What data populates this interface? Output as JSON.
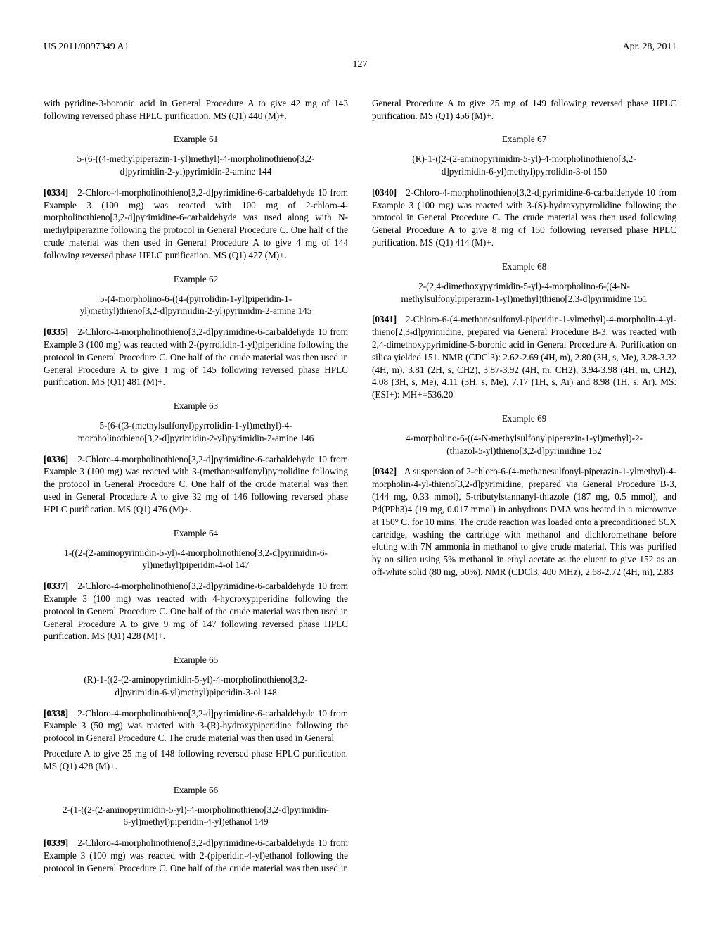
{
  "header": {
    "pub_number": "US 2011/0097349 A1",
    "pub_date": "Apr. 28, 2011"
  },
  "page_number": "127",
  "lead_in": "with pyridine-3-boronic acid in General Procedure A to give 42 mg of 143 following reversed phase HPLC purification. MS (Q1) 440 (M)+.",
  "examples": [
    {
      "label": "Example 61",
      "title": "5-(6-((4-methylpiperazin-1-yl)methyl)-4-morpholinothieno[3,2-d]pyrimidin-2-yl)pyrimidin-2-amine 144",
      "pnum": "[0334]",
      "body": "2-Chloro-4-morpholinothieno[3,2-d]pyrimidine-6-carbaldehyde 10 from Example 3 (100 mg) was reacted with 100 mg of 2-chloro-4-morpholinothieno[3,2-d]pyrimidine-6-carbaldehyde was used along with N-methylpiperazine following the protocol in General Procedure C. One half of the crude material was then used in General Procedure A to give 4 mg of 144 following reversed phase HPLC purification. MS (Q1) 427 (M)+."
    },
    {
      "label": "Example 62",
      "title": "5-(4-morpholino-6-((4-(pyrrolidin-1-yl)piperidin-1-yl)methyl)thieno[3,2-d]pyrimidin-2-yl)pyrimidin-2-amine 145",
      "pnum": "[0335]",
      "body": "2-Chloro-4-morpholinothieno[3,2-d]pyrimidine-6-carbaldehyde 10 from Example 3 (100 mg) was reacted with 2-(pyrrolidin-1-yl)piperidine following the protocol in General Procedure C. One half of the crude material was then used in General Procedure A to give 1 mg of 145 following reversed phase HPLC purification. MS (Q1) 481 (M)+."
    },
    {
      "label": "Example 63",
      "title": "5-(6-((3-(methylsulfonyl)pyrrolidin-1-yl)methyl)-4-morpholinothieno[3,2-d]pyrimidin-2-yl)pyrimidin-2-amine 146",
      "pnum": "[0336]",
      "body": "2-Chloro-4-morpholinothieno[3,2-d]pyrimidine-6-carbaldehyde 10 from Example 3 (100 mg) was reacted with 3-(methanesulfonyl)pyrrolidine following the protocol in General Procedure C. One half of the crude material was then used in General Procedure A to give 32 mg of 146 following reversed phase HPLC purification. MS (Q1) 476 (M)+."
    },
    {
      "label": "Example 64",
      "title": "1-((2-(2-aminopyrimidin-5-yl)-4-morpholinothieno[3,2-d]pyrimidin-6-yl)methyl)piperidin-4-ol 147",
      "pnum": "[0337]",
      "body": "2-Chloro-4-morpholinothieno[3,2-d]pyrimidine-6-carbaldehyde 10 from Example 3 (100 mg) was reacted with 4-hydroxypiperidine following the protocol in General Procedure C. One half of the crude material was then used in General Procedure A to give 9 mg of 147 following reversed phase HPLC purification. MS (Q1) 428 (M)+."
    },
    {
      "label": "Example 65",
      "title": "(R)-1-((2-(2-aminopyrimidin-5-yl)-4-morpholinothieno[3,2-d]pyrimidin-6-yl)methyl)piperidin-3-ol 148",
      "pnum": "[0338]",
      "body_split_a": "2-Chloro-4-morpholinothieno[3,2-d]pyrimidine-6-carbaldehyde 10 from Example 3 (50 mg) was reacted with 3-(R)-hydroxypiperidine following the protocol in General Procedure C. The crude material was then used in General",
      "body_split_b": "Procedure A to give 25 mg of 148 following reversed phase HPLC purification. MS (Q1) 428 (M)+."
    },
    {
      "label": "Example 66",
      "title": "2-(1-((2-(2-aminopyrimidin-5-yl)-4-morpholinothieno[3,2-d]pyrimidin-6-yl)methyl)piperidin-4-yl)ethanol 149",
      "pnum": "[0339]",
      "body": "2-Chloro-4-morpholinothieno[3,2-d]pyrimidine-6-carbaldehyde 10 from Example 3 (100 mg) was reacted with 2-(piperidin-4-yl)ethanol following the protocol in General Procedure C. One half of the crude material was then used in General Procedure A to give 25 mg of 149 following reversed phase HPLC purification. MS (Q1) 456 (M)+."
    },
    {
      "label": "Example 67",
      "title": "(R)-1-((2-(2-aminopyrimidin-5-yl)-4-morpholinothieno[3,2-d]pyrimidin-6-yl)methyl)pyrrolidin-3-ol 150",
      "pnum": "[0340]",
      "body": "2-Chloro-4-morpholinothieno[3,2-d]pyrimidine-6-carbaldehyde 10 from Example 3 (100 mg) was reacted with 3-(S)-hydroxypyrrolidine following the protocol in General Procedure C. The crude material was then used following General Procedure A to give 8 mg of 150 following reversed phase HPLC purification. MS (Q1) 414 (M)+."
    },
    {
      "label": "Example 68",
      "title": "2-(2,4-dimethoxypyrimidin-5-yl)-4-morpholino-6-((4-N-methylsulfonylpiperazin-1-yl)methyl)thieno[2,3-d]pyrimidine 151",
      "pnum": "[0341]",
      "body": "2-Chloro-6-(4-methanesulfonyl-piperidin-1-ylmethyl)-4-morpholin-4-yl-thieno[2,3-d]pyrimidine, prepared via General Procedure B-3, was reacted with 2,4-dimethoxypyrimidine-5-boronic acid in General Procedure A. Purification on silica yielded 151. NMR (CDCl3): 2.62-2.69 (4H, m), 2.80 (3H, s, Me), 3.28-3.32 (4H, m), 3.81 (2H, s, CH2), 3.87-3.92 (4H, m, CH2), 3.94-3.98 (4H, m, CH2), 4.08 (3H, s, Me), 4.11 (3H, s, Me), 7.17 (1H, s, Ar) and 8.98 (1H, s, Ar). MS: (ESI+): MH+=536.20"
    },
    {
      "label": "Example 69",
      "title": "4-morpholino-6-((4-N-methylsulfonylpiperazin-1-yl)methyl)-2-(thiazol-5-yl)thieno[3,2-d]pyrimidine 152",
      "pnum": "[0342]",
      "body": "A suspension of 2-chloro-6-(4-methanesulfonyl-piperazin-1-ylmethyl)-4-morpholin-4-yl-thieno[3,2-d]pyrimidine, prepared via General Procedure B-3, (144 mg, 0.33 mmol), 5-tributylstannanyl-thiazole (187 mg, 0.5 mmol), and Pd(PPh3)4 (19 mg, 0.017 mmol) in anhydrous DMA was heated in a microwave at 150° C. for 10 mins. The crude reaction was loaded onto a preconditioned SCX cartridge, washing the cartridge with methanol and dichloromethane before eluting with 7N ammonia in methanol to give crude material. This was purified by on silica using 5% methanol in ethyl acetate as the eluent to give 152 as an off-white solid (80 mg, 50%). NMR (CDCl3, 400 MHz), 2.68-2.72 (4H, m), 2.83"
    }
  ]
}
